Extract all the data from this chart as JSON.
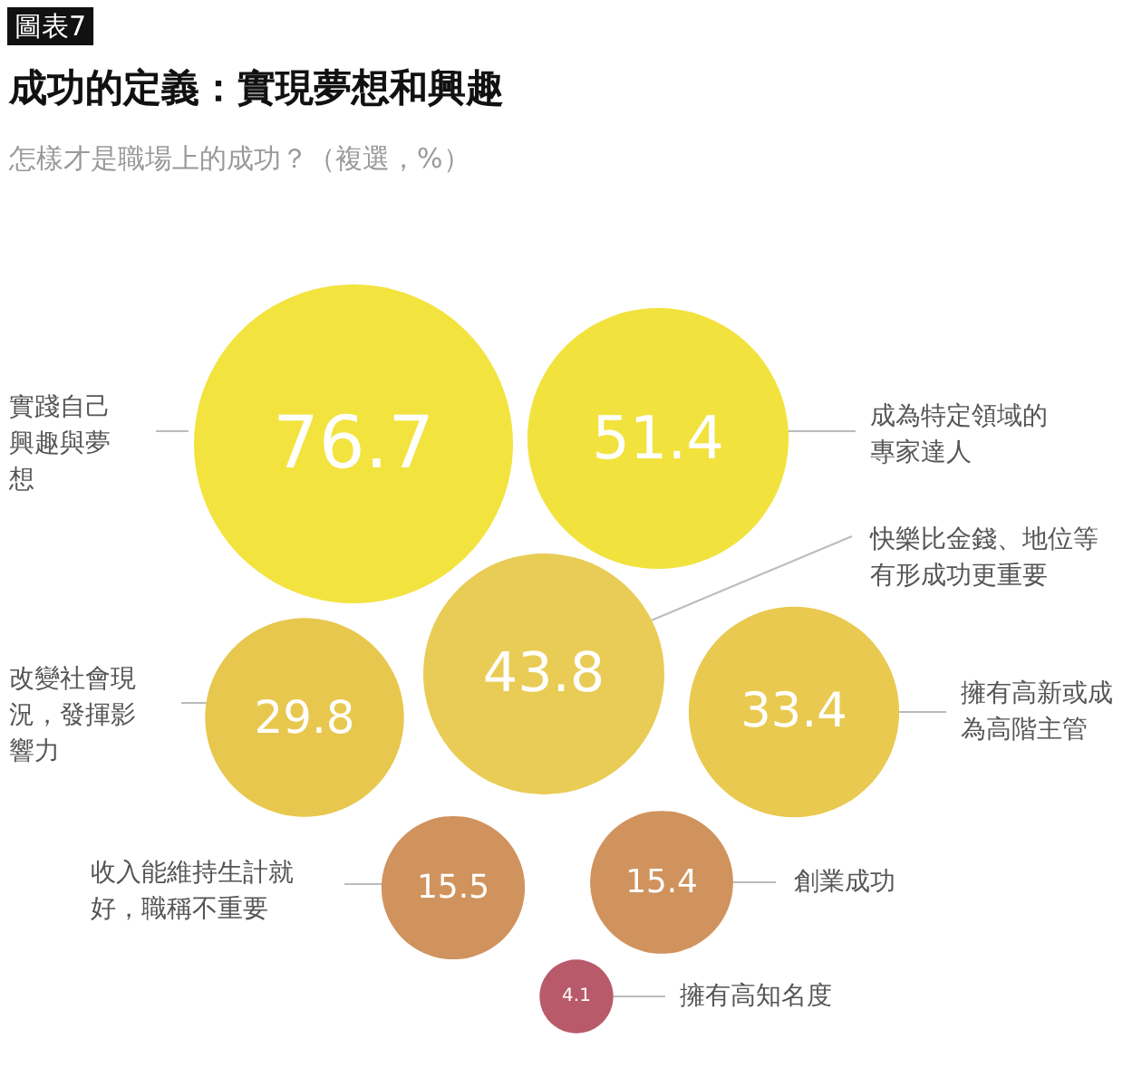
{
  "chart_data": {
    "type": "other",
    "title": "成功的定義：實現夢想和興趣",
    "subtitle": "怎樣才是職場上的成功？（複選，%）",
    "annotations": [
      "圖表7"
    ],
    "categories": [
      "實踐自己興趣與夢想",
      "成為特定領域的專家達人",
      "快樂比金錢、地位等有形成功更重要",
      "改變社會現況，發揮影響力",
      "擁有高新或成為高階主管",
      "收入能維持生計就好，職稱不重要",
      "創業成功",
      "擁有高知名度"
    ],
    "values": [
      76.7,
      51.4,
      43.8,
      29.8,
      33.4,
      15.5,
      15.4,
      4.1
    ],
    "colors": [
      "#f3e33f",
      "#f2e23e",
      "#e9cc55",
      "#e8c74e",
      "#e9c94f",
      "#d0935d",
      "#d0935d",
      "#b85a6a"
    ],
    "data_labels": true
  }
}
